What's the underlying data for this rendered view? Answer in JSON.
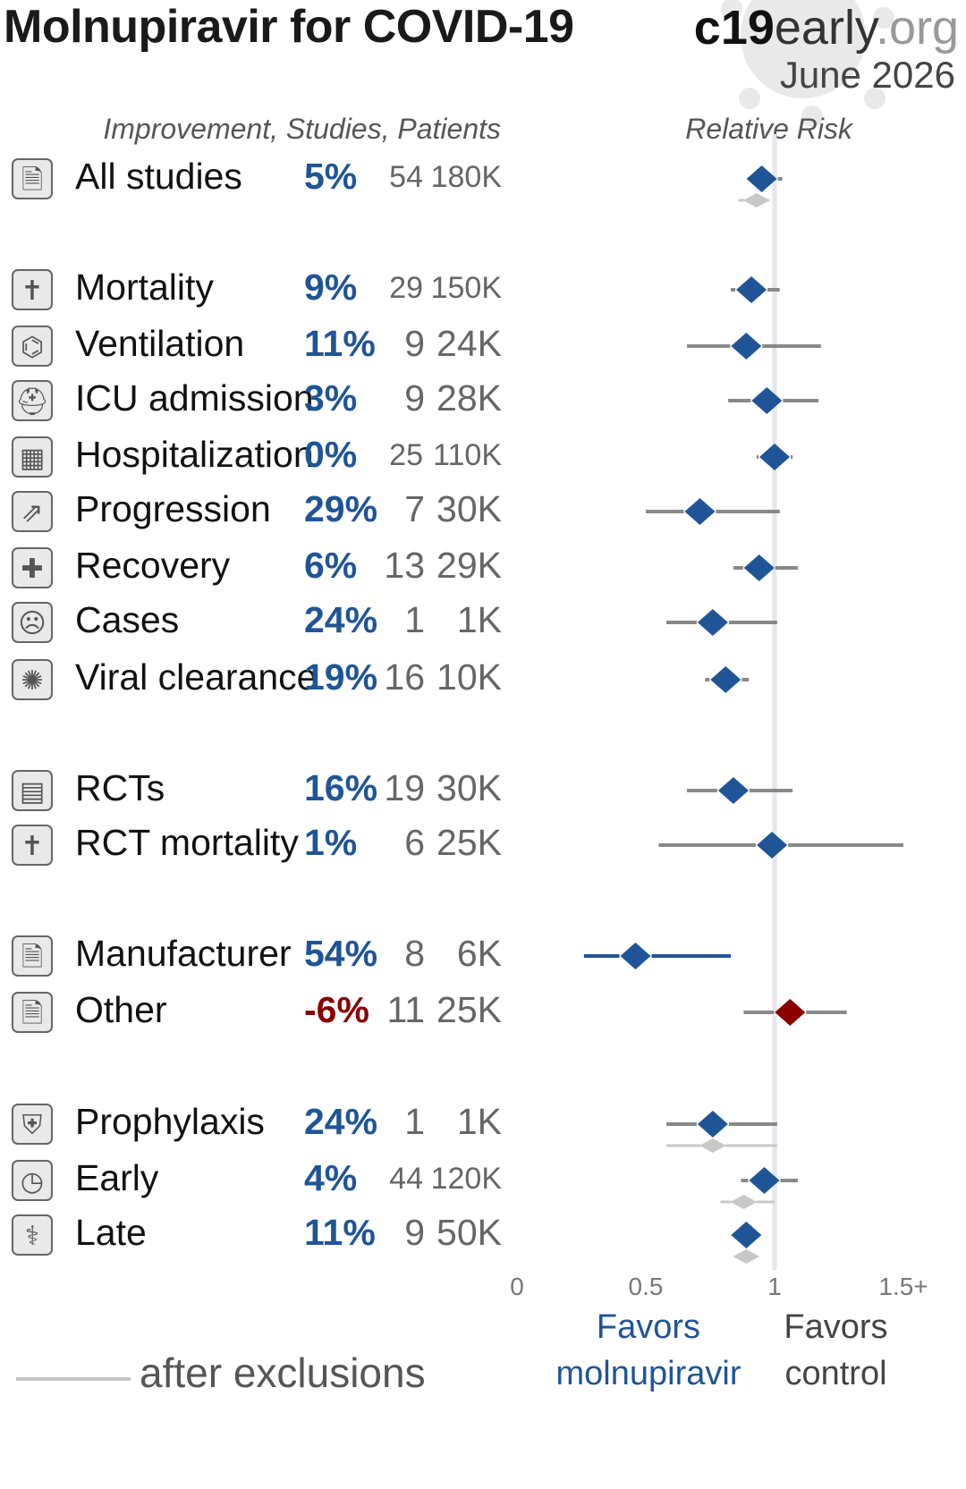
{
  "header": {
    "title": "Molnupiravir for COVID-19",
    "brand_bold": "c19",
    "brand_mid": "early",
    "brand_light": ".org",
    "date": "June 2026",
    "col_left": "Improvement, Studies, Patients",
    "col_right": "Relative Risk"
  },
  "colors": {
    "favorable": "#1f5596",
    "unfavorable": "#8b0000",
    "ci_line": "#888888",
    "after_exclusions": "#c8c8c8",
    "reference_line": "#e6e6ee"
  },
  "rows": [
    {
      "label": "All studies",
      "improvement": "5%",
      "studies": "54",
      "patients": "180K",
      "icon": "study-icon"
    },
    {
      "label": "Mortality",
      "improvement": "9%",
      "studies": "29",
      "patients": "150K",
      "icon": "tombstone-icon"
    },
    {
      "label": "Ventilation",
      "improvement": "11%",
      "studies": "9",
      "patients": "24K",
      "icon": "ventilator-icon"
    },
    {
      "label": "ICU admission",
      "improvement": "3%",
      "studies": "9",
      "patients": "28K",
      "icon": "icu-bed-icon"
    },
    {
      "label": "Hospitalization",
      "improvement": "0%",
      "studies": "25",
      "patients": "110K",
      "icon": "hospital-icon"
    },
    {
      "label": "Progression",
      "improvement": "29%",
      "studies": "7",
      "patients": "30K",
      "icon": "progression-icon"
    },
    {
      "label": "Recovery",
      "improvement": "6%",
      "studies": "13",
      "patients": "29K",
      "icon": "recovery-icon"
    },
    {
      "label": "Cases",
      "improvement": "24%",
      "studies": "1",
      "patients": "1K",
      "icon": "sick-person-icon"
    },
    {
      "label": "Viral clearance",
      "improvement": "19%",
      "studies": "16",
      "patients": "10K",
      "icon": "virus-icon"
    },
    {
      "label": "RCTs",
      "improvement": "16%",
      "studies": "19",
      "patients": "30K",
      "icon": "rct-icon"
    },
    {
      "label": "RCT mortality",
      "improvement": "1%",
      "studies": "6",
      "patients": "25K",
      "icon": "tombstone-icon"
    },
    {
      "label": "Manufacturer",
      "improvement": "54%",
      "studies": "8",
      "patients": "6K",
      "icon": "study-icon"
    },
    {
      "label": "Other",
      "improvement": "-6%",
      "studies": "11",
      "patients": "25K",
      "icon": "study-icon"
    },
    {
      "label": "Prophylaxis",
      "improvement": "24%",
      "studies": "1",
      "patients": "1K",
      "icon": "shield-icon"
    },
    {
      "label": "Early",
      "improvement": "4%",
      "studies": "44",
      "patients": "120K",
      "icon": "clock-pill-icon"
    },
    {
      "label": "Late",
      "improvement": "11%",
      "studies": "9",
      "patients": "50K",
      "icon": "late-treatment-icon"
    }
  ],
  "chart_data": {
    "type": "forest",
    "xlabel_left": "Favors molnupiravir",
    "xlabel_right": "Favors control",
    "legend": "after exclusions",
    "x_ticks": [
      "0",
      "0.5",
      "1",
      "1.5+"
    ],
    "xlim": [
      0,
      1.5
    ],
    "reference": 1,
    "series": [
      {
        "label": "All studies",
        "rr": 0.95,
        "lo": 0.89,
        "hi": 1.03,
        "after": {
          "rr": 0.93,
          "lo": 0.86,
          "hi": 0.98
        }
      },
      {
        "label": "Mortality",
        "rr": 0.91,
        "lo": 0.83,
        "hi": 1.02
      },
      {
        "label": "Ventilation",
        "rr": 0.89,
        "lo": 0.66,
        "hi": 1.18
      },
      {
        "label": "ICU admission",
        "rr": 0.97,
        "lo": 0.82,
        "hi": 1.17
      },
      {
        "label": "Hospitalization",
        "rr": 1.0,
        "lo": 0.93,
        "hi": 1.07
      },
      {
        "label": "Progression",
        "rr": 0.71,
        "lo": 0.5,
        "hi": 1.02
      },
      {
        "label": "Recovery",
        "rr": 0.94,
        "lo": 0.84,
        "hi": 1.09
      },
      {
        "label": "Cases",
        "rr": 0.76,
        "lo": 0.58,
        "hi": 1.01
      },
      {
        "label": "Viral clearance",
        "rr": 0.81,
        "lo": 0.73,
        "hi": 0.9
      },
      {
        "label": "RCTs",
        "rr": 0.84,
        "lo": 0.66,
        "hi": 1.07
      },
      {
        "label": "RCT mortality",
        "rr": 0.99,
        "lo": 0.55,
        "hi": 1.5
      },
      {
        "label": "Manufacturer",
        "rr": 0.46,
        "lo": 0.26,
        "hi": 0.83
      },
      {
        "label": "Other",
        "rr": 1.06,
        "lo": 0.88,
        "hi": 1.28
      },
      {
        "label": "Prophylaxis",
        "rr": 0.76,
        "lo": 0.58,
        "hi": 1.01,
        "after": {
          "rr": 0.76,
          "lo": 0.58,
          "hi": 1.01
        }
      },
      {
        "label": "Early",
        "rr": 0.96,
        "lo": 0.87,
        "hi": 1.09,
        "after": {
          "rr": 0.88,
          "lo": 0.79,
          "hi": 1.0
        }
      },
      {
        "label": "Late",
        "rr": 0.89,
        "lo": 0.85,
        "hi": 0.93,
        "after": {
          "rr": 0.89,
          "lo": 0.86,
          "hi": 0.92
        }
      }
    ]
  }
}
